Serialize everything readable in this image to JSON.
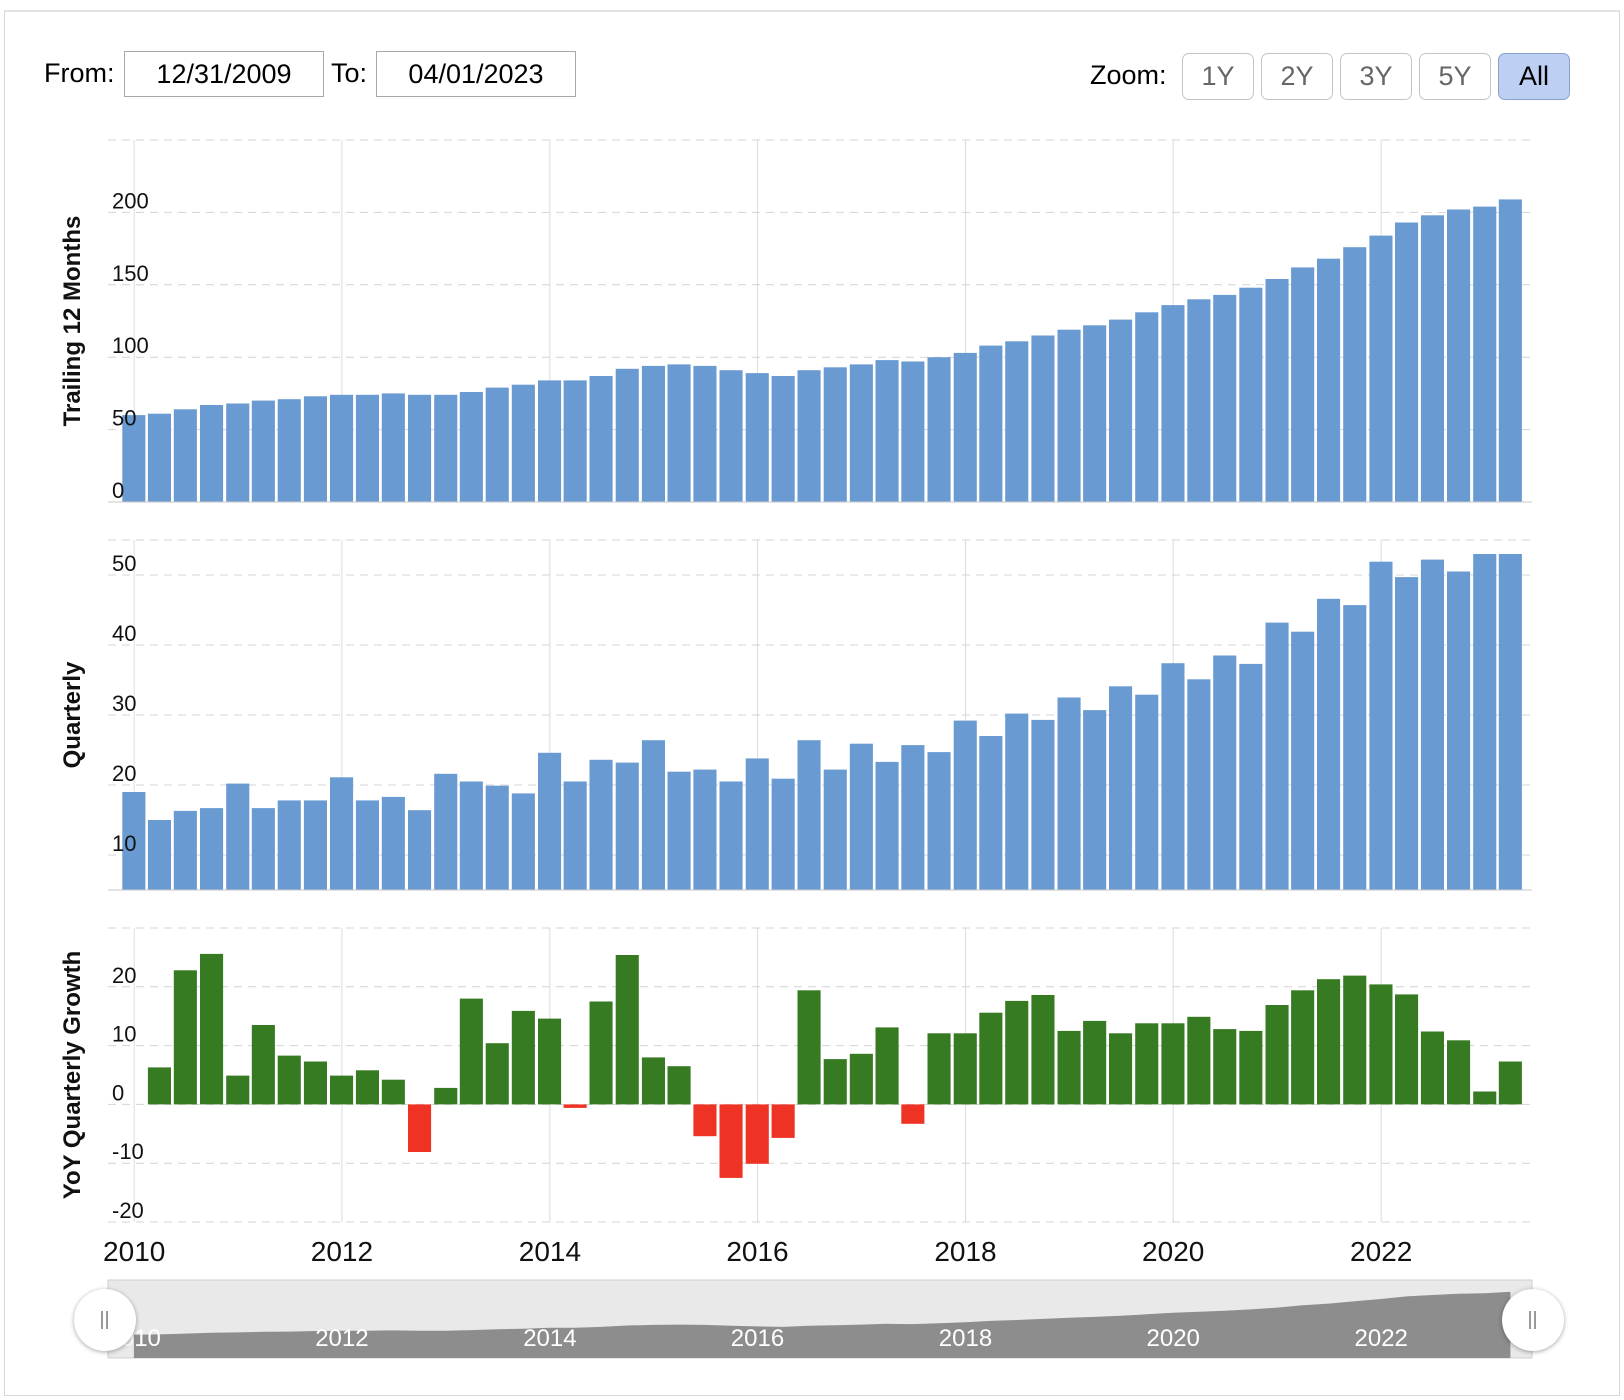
{
  "range_selector": {
    "from_label": "From:",
    "from_value": "12/31/2009",
    "to_label": "To:",
    "to_value": "04/01/2023",
    "zoom_label": "Zoom:",
    "zoom_buttons": [
      "1Y",
      "2Y",
      "3Y",
      "5Y",
      "All"
    ],
    "active_zoom": "All"
  },
  "colors": {
    "bar_blue": "#6a9ad2",
    "growth_positive": "#367a22",
    "growth_negative": "#ee3224",
    "navigator_fill": "#888888",
    "navigator_bg": "#e9e9e9"
  },
  "chart_data": [
    {
      "type": "bar",
      "ylabel": "Trailing 12 Months",
      "ylim": [
        0,
        250
      ],
      "yticks": [
        0,
        50,
        100,
        150,
        200
      ],
      "xlim": [
        "2009-10-01",
        "2023-06-15"
      ],
      "xticks": [
        "2010",
        "2012",
        "2014",
        "2016",
        "2018",
        "2020",
        "2022"
      ],
      "x": [
        "2009-12-31",
        "2010-03-31",
        "2010-06-30",
        "2010-09-30",
        "2010-12-31",
        "2011-03-31",
        "2011-06-30",
        "2011-09-30",
        "2011-12-31",
        "2012-03-31",
        "2012-06-30",
        "2012-09-30",
        "2012-12-31",
        "2013-03-31",
        "2013-06-30",
        "2013-09-30",
        "2013-12-31",
        "2014-03-31",
        "2014-06-30",
        "2014-09-30",
        "2014-12-31",
        "2015-03-31",
        "2015-06-30",
        "2015-09-30",
        "2015-12-31",
        "2016-03-31",
        "2016-06-30",
        "2016-09-30",
        "2016-12-31",
        "2017-03-31",
        "2017-06-30",
        "2017-09-30",
        "2017-12-31",
        "2018-03-31",
        "2018-06-30",
        "2018-09-30",
        "2018-12-31",
        "2019-03-31",
        "2019-06-30",
        "2019-09-30",
        "2019-12-31",
        "2020-03-31",
        "2020-06-30",
        "2020-09-30",
        "2020-12-31",
        "2021-03-31",
        "2021-06-30",
        "2021-09-30",
        "2021-12-31",
        "2022-03-31",
        "2022-06-30",
        "2022-09-30",
        "2022-12-31",
        "2023-03-31"
      ],
      "values": [
        60,
        61,
        64,
        67,
        68,
        70,
        71,
        73,
        74,
        74,
        75,
        74,
        74,
        76,
        79,
        81,
        84,
        84,
        87,
        92,
        94,
        95,
        94,
        91,
        89,
        87,
        91,
        93,
        95,
        98,
        97,
        100,
        103,
        108,
        111,
        115,
        119,
        122,
        126,
        131,
        136,
        140,
        143,
        148,
        154,
        162,
        168,
        176,
        184,
        193,
        198,
        202,
        204,
        209
      ],
      "grid": true
    },
    {
      "type": "bar",
      "ylabel": "Quarterly",
      "ylim": [
        5,
        55
      ],
      "yticks": [
        10,
        20,
        30,
        40,
        50
      ],
      "xlim": [
        "2009-10-01",
        "2023-06-15"
      ],
      "xticks": [
        "2010",
        "2012",
        "2014",
        "2016",
        "2018",
        "2020",
        "2022"
      ],
      "x": [
        "2009-12-31",
        "2010-03-31",
        "2010-06-30",
        "2010-09-30",
        "2010-12-31",
        "2011-03-31",
        "2011-06-30",
        "2011-09-30",
        "2011-12-31",
        "2012-03-31",
        "2012-06-30",
        "2012-09-30",
        "2012-12-31",
        "2013-03-31",
        "2013-06-30",
        "2013-09-30",
        "2013-12-31",
        "2014-03-31",
        "2014-06-30",
        "2014-09-30",
        "2014-12-31",
        "2015-03-31",
        "2015-06-30",
        "2015-09-30",
        "2015-12-31",
        "2016-03-31",
        "2016-06-30",
        "2016-09-30",
        "2016-12-31",
        "2017-03-31",
        "2017-06-30",
        "2017-09-30",
        "2017-12-31",
        "2018-03-31",
        "2018-06-30",
        "2018-09-30",
        "2018-12-31",
        "2019-03-31",
        "2019-06-30",
        "2019-09-30",
        "2019-12-31",
        "2020-03-31",
        "2020-06-30",
        "2020-09-30",
        "2020-12-31",
        "2021-03-31",
        "2021-06-30",
        "2021-09-30",
        "2021-12-31",
        "2022-03-31",
        "2022-06-30",
        "2022-09-30",
        "2022-12-31",
        "2023-03-31"
      ],
      "values": [
        19,
        15,
        16.3,
        16.7,
        20.2,
        16.7,
        17.8,
        17.8,
        21.1,
        17.8,
        18.3,
        16.4,
        21.6,
        20.5,
        19.9,
        18.8,
        24.6,
        20.5,
        23.6,
        23.2,
        26.4,
        21.9,
        22.2,
        20.5,
        23.8,
        20.9,
        26.4,
        22.2,
        25.9,
        23.3,
        25.7,
        24.7,
        29.2,
        27,
        30.2,
        29.3,
        32.5,
        30.7,
        34.1,
        32.9,
        37.4,
        35.1,
        38.5,
        37.3,
        43.2,
        41.9,
        46.6,
        45.7,
        51.9,
        49.7,
        52.2,
        50.5,
        53,
        53
      ],
      "grid": true
    },
    {
      "type": "bar",
      "ylabel": "YoY Quarterly Growth",
      "ylim": [
        -20,
        30
      ],
      "yticks": [
        -20,
        -10,
        0,
        10,
        20
      ],
      "xlim": [
        "2009-10-01",
        "2023-06-15"
      ],
      "xticks": [
        "2010",
        "2012",
        "2014",
        "2016",
        "2018",
        "2020",
        "2022"
      ],
      "x": [
        "2010-03-31",
        "2010-06-30",
        "2010-09-30",
        "2010-12-31",
        "2011-03-31",
        "2011-06-30",
        "2011-09-30",
        "2011-12-31",
        "2012-03-31",
        "2012-06-30",
        "2012-09-30",
        "2012-12-31",
        "2013-03-31",
        "2013-06-30",
        "2013-09-30",
        "2013-12-31",
        "2014-03-31",
        "2014-06-30",
        "2014-09-30",
        "2014-12-31",
        "2015-03-31",
        "2015-06-30",
        "2015-09-30",
        "2015-12-31",
        "2016-03-31",
        "2016-06-30",
        "2016-09-30",
        "2016-12-31",
        "2017-03-31",
        "2017-06-30",
        "2017-09-30",
        "2017-12-31",
        "2018-03-31",
        "2018-06-30",
        "2018-09-30",
        "2018-12-31",
        "2019-03-31",
        "2019-06-30",
        "2019-09-30",
        "2019-12-31",
        "2020-03-31",
        "2020-06-30",
        "2020-09-30",
        "2020-12-31",
        "2021-03-31",
        "2021-06-30",
        "2021-09-30",
        "2021-12-31",
        "2022-03-31",
        "2022-06-30",
        "2022-09-30",
        "2022-12-31",
        "2023-03-31"
      ],
      "values": [
        6.3,
        22.8,
        25.6,
        4.9,
        13.5,
        8.3,
        7.3,
        4.9,
        5.8,
        4.2,
        -8.1,
        2.8,
        18,
        10.4,
        15.9,
        14.6,
        -0.6,
        17.5,
        25.4,
        8,
        6.5,
        -5.4,
        -12.5,
        -10.1,
        -5.7,
        19.4,
        7.7,
        8.6,
        13.1,
        -3.3,
        12.1,
        12.1,
        15.6,
        17.6,
        18.6,
        12.5,
        14.2,
        12.1,
        13.8,
        13.8,
        14.9,
        12.8,
        12.5,
        16.9,
        19.4,
        21.3,
        21.9,
        20.4,
        18.7,
        12.4,
        10.9,
        2.2,
        7.3
      ],
      "grid": true
    }
  ],
  "navigator": {
    "xticks": [
      "2010",
      "2012",
      "2014",
      "2016",
      "2018",
      "2020",
      "2022"
    ]
  }
}
